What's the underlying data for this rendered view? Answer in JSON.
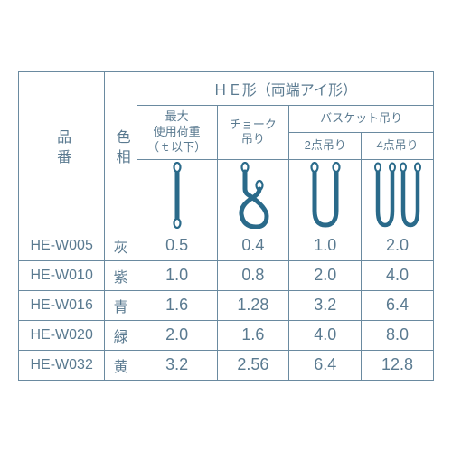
{
  "colors": {
    "border": "#6a8aa0",
    "text": "#5a7a90",
    "icon": "#2a6a8a"
  },
  "header": {
    "partNo": "品番",
    "color": "色相",
    "topGroup": "ＨＥ形（両端アイ形）",
    "maxLoad": "最大\n使用荷重\n（ｔ以下）",
    "choke": "チョーク\n吊り",
    "basket": "バスケット吊り",
    "pt2": "2点吊り",
    "pt4": "4点吊り"
  },
  "columns": {
    "partNoW": 86,
    "colorW": 32,
    "c1W": 80,
    "c2W": 72,
    "c3W": 72,
    "c4W": 72
  },
  "rows": [
    {
      "pn": "HE-W005",
      "col": "灰",
      "v": [
        "0.5",
        "0.4",
        "1.0",
        "2.0"
      ]
    },
    {
      "pn": "HE-W010",
      "col": "紫",
      "v": [
        "1.0",
        "0.8",
        "2.0",
        "4.0"
      ]
    },
    {
      "pn": "HE-W016",
      "col": "青",
      "v": [
        "1.6",
        "1.28",
        "3.2",
        "6.4"
      ]
    },
    {
      "pn": "HE-W020",
      "col": "緑",
      "v": [
        "2.0",
        "1.6",
        "4.0",
        "8.0"
      ]
    },
    {
      "pn": "HE-W032",
      "col": "黄",
      "v": [
        "3.2",
        "2.56",
        "6.4",
        "12.8"
      ]
    }
  ]
}
